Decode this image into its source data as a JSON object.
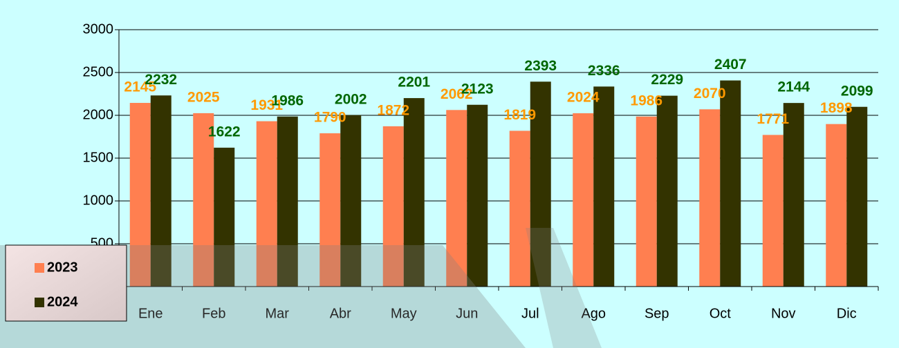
{
  "chart_data": {
    "type": "bar",
    "categories": [
      "Ene",
      "Feb",
      "Mar",
      "Abr",
      "May",
      "Jun",
      "Jul",
      "Ago",
      "Sep",
      "Oct",
      "Nov",
      "Dic"
    ],
    "series": [
      {
        "name": "2023",
        "color": "#ff7f50",
        "label_color": "#ff9900",
        "values": [
          2145,
          2025,
          1931,
          1790,
          1872,
          2062,
          1819,
          2024,
          1986,
          2070,
          1771,
          1898
        ]
      },
      {
        "name": "2024",
        "color": "#333300",
        "label_color": "#006600",
        "values": [
          2232,
          1622,
          1986,
          2002,
          2201,
          2123,
          2393,
          2336,
          2229,
          2407,
          2144,
          2099
        ]
      }
    ],
    "ylim": [
      0,
      3000
    ],
    "yticks": [
      0,
      500,
      1000,
      1500,
      2000,
      2500,
      3000
    ],
    "grid": true,
    "legend": "bottom-left"
  }
}
